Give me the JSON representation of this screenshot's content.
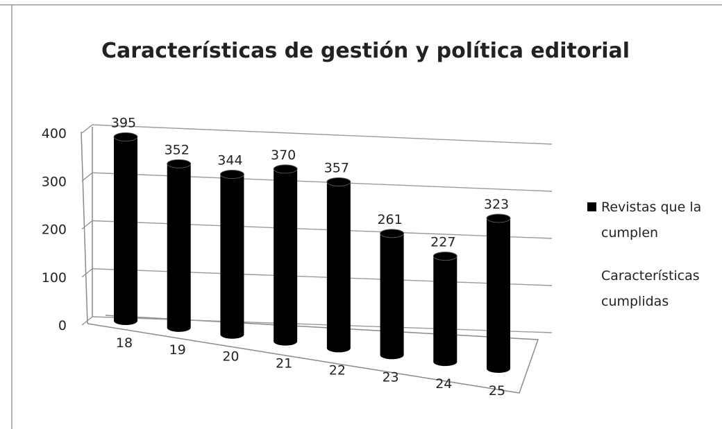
{
  "chart_data": {
    "type": "bar",
    "style": "3d-cylinder",
    "title": "Características de gestión y política editorial",
    "xlabel": "",
    "ylabel": "",
    "ylim": [
      0,
      400
    ],
    "yticks": [
      0,
      100,
      200,
      300,
      400
    ],
    "categories": [
      "18",
      "19",
      "20",
      "21",
      "22",
      "23",
      "24",
      "25"
    ],
    "series": [
      {
        "name": "Revistas que la cumplen",
        "values": [
          395,
          352,
          344,
          370,
          357,
          261,
          227,
          323
        ],
        "color": "#000000"
      }
    ],
    "series_axis_label": "Características cumplidas",
    "data_labels": true,
    "grid": true,
    "legend_position": "right"
  },
  "legend": {
    "line1": "Revistas que la",
    "line2": "cumplen",
    "axis_line1": "Características",
    "axis_line2": "cumplidas"
  }
}
